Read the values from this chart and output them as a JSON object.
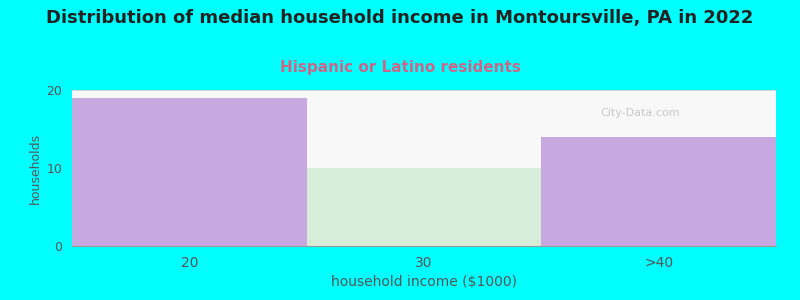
{
  "title": "Distribution of median household income in Montoursville, PA in 2022",
  "subtitle": "Hispanic or Latino residents",
  "xlabel": "household income ($1000)",
  "ylabel": "households",
  "categories": [
    "20",
    "30",
    ">40"
  ],
  "values": [
    19,
    10,
    14
  ],
  "bar_colors": [
    "#c8a8e0",
    "#d8ecda",
    "#c8a8e0"
  ],
  "ylim": [
    0,
    20
  ],
  "yticks": [
    0,
    10,
    20
  ],
  "background_color": "#00ffff",
  "plot_bg_color": "#f8f8f8",
  "title_fontsize": 13,
  "subtitle_fontsize": 11,
  "subtitle_color": "#cc6688",
  "xlabel_fontsize": 10,
  "ylabel_fontsize": 9,
  "tick_color": "#555555",
  "watermark": "City-Data.com"
}
